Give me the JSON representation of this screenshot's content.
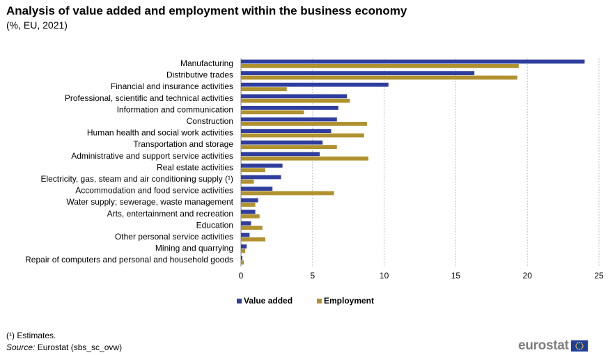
{
  "title": "Analysis of value added and employment within the business economy",
  "subtitle": "(%, EU, 2021)",
  "footnote": "(¹) Estimates.",
  "source_label": "Source:",
  "source_text": " Eurostat (sbs_sc_ovw)",
  "logo_text": "eurostat",
  "colors": {
    "value_added": "#2F3E9E",
    "employment": "#B09230",
    "grid": "#BFBFBF",
    "axis": "#808080"
  },
  "chart_data": {
    "type": "bar",
    "orientation": "horizontal",
    "categories": [
      "Manufacturing",
      "Distributive trades",
      "Financial and insurance activities",
      "Professional, scientific and technical activities",
      "Information and communication",
      "Construction",
      "Human health and social work activities",
      "Transportation and storage",
      "Administrative and support service activities",
      "Real estate activities",
      "Electricity, gas, steam and air conditioning supply (¹)",
      "Accommodation and food service activities",
      "Water supply; sewerage, waste management",
      "Arts, entertainment and recreation",
      "Education",
      "Other personal service activities",
      "Mining and quarrying",
      "Repair of computers and personal and household goods"
    ],
    "series": [
      {
        "name": "Value added",
        "values": [
          24.0,
          16.3,
          10.3,
          7.4,
          6.8,
          6.7,
          6.3,
          5.7,
          5.5,
          2.9,
          2.8,
          2.2,
          1.2,
          1.0,
          0.7,
          0.6,
          0.4,
          0.1
        ]
      },
      {
        "name": "Employment",
        "values": [
          19.4,
          19.3,
          3.2,
          7.6,
          4.4,
          8.8,
          8.6,
          6.7,
          8.9,
          1.7,
          0.9,
          6.5,
          1.0,
          1.3,
          1.5,
          1.7,
          0.3,
          0.2
        ]
      }
    ],
    "xlim": [
      0,
      25
    ],
    "xticks": [
      0,
      5,
      10,
      15,
      20,
      25
    ],
    "xlabel": "",
    "ylabel": "",
    "grid": true,
    "legend_position": "bottom"
  }
}
